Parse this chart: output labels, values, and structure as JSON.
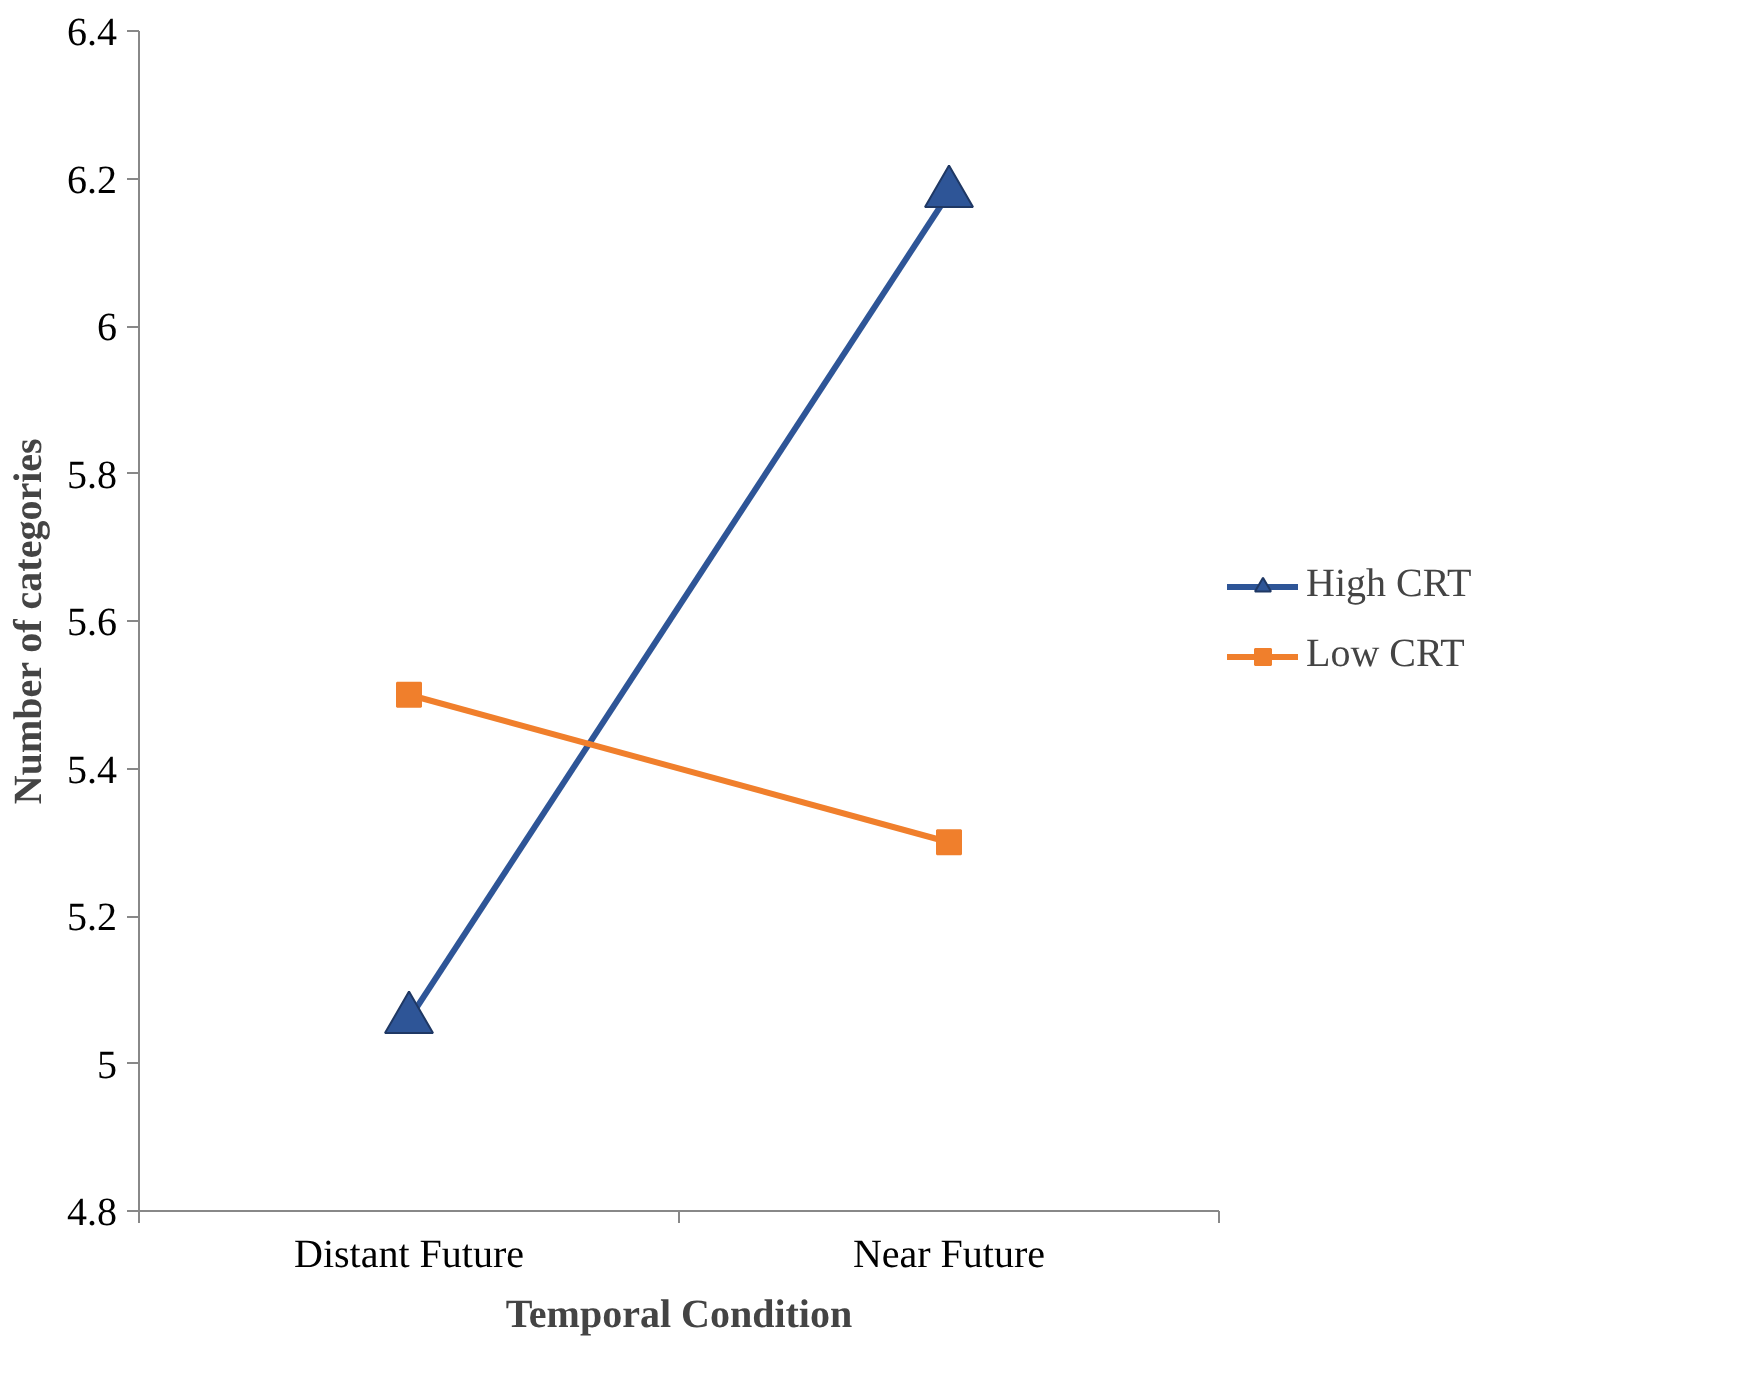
{
  "chart_data": {
    "type": "line",
    "xlabel": "Temporal Condition",
    "ylabel": "Number of categories",
    "categories": [
      "Distant Future",
      "Near Future"
    ],
    "series": [
      {
        "name": "High CRT",
        "color": "#2e5597",
        "marker": "triangle",
        "values": [
          5.06,
          6.18
        ]
      },
      {
        "name": "Low CRT",
        "color": "#f07f2c",
        "marker": "square",
        "values": [
          5.5,
          5.3
        ]
      }
    ],
    "ylim": [
      4.8,
      6.4
    ],
    "yticks": [
      4.8,
      5,
      5.2,
      5.4,
      5.6,
      5.8,
      6,
      6.2,
      6.4
    ],
    "grid": false,
    "legend": "right"
  }
}
